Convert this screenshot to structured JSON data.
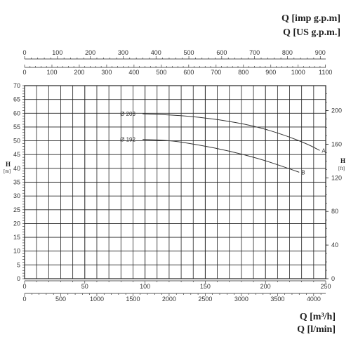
{
  "chart_data": {
    "type": "line",
    "units": {
      "top1": "Q [imp g.p.m]",
      "top2": "Q [US g.p.m.]",
      "bottom1": "Q [m³/h]",
      "bottom2": "Q [l/min]"
    },
    "left_axis": {
      "label_main": "H",
      "label_sub": "[m]",
      "range": [
        0,
        70
      ],
      "ticks": [
        0,
        5,
        10,
        15,
        20,
        25,
        30,
        35,
        40,
        45,
        50,
        55,
        60,
        65,
        70
      ]
    },
    "right_axis": {
      "label_main": "H",
      "label_sub": "[ft]",
      "ticks": [
        0,
        40,
        80,
        120,
        160,
        200
      ]
    },
    "x_m3h": {
      "range": [
        0,
        250
      ],
      "ticks": [
        0,
        50,
        100,
        150,
        200,
        250
      ]
    },
    "x_lmin": {
      "ticks": [
        0,
        500,
        1000,
        1500,
        2000,
        2500,
        3000,
        3500,
        4000
      ]
    },
    "x_imp_gpm": {
      "ticks": [
        0,
        100,
        200,
        300,
        400,
        500,
        600,
        700,
        800,
        900
      ]
    },
    "x_us_gpm": {
      "ticks": [
        0,
        100,
        200,
        300,
        400,
        500,
        600,
        700,
        800,
        900,
        1000,
        1100
      ]
    },
    "grid": true,
    "series": [
      {
        "name": "Ø 203",
        "end_label": "A",
        "x": [
          98,
          130,
          160,
          190,
          215,
          235,
          245
        ],
        "y": [
          59.8,
          59.2,
          57.8,
          55.5,
          52.2,
          48.8,
          46.5
        ]
      },
      {
        "name": "Ø 192",
        "end_label": "B",
        "x": [
          98,
          120,
          145,
          170,
          195,
          215,
          228
        ],
        "y": [
          50.5,
          50.2,
          48.5,
          46.3,
          43.5,
          40.6,
          38.6
        ]
      }
    ]
  }
}
